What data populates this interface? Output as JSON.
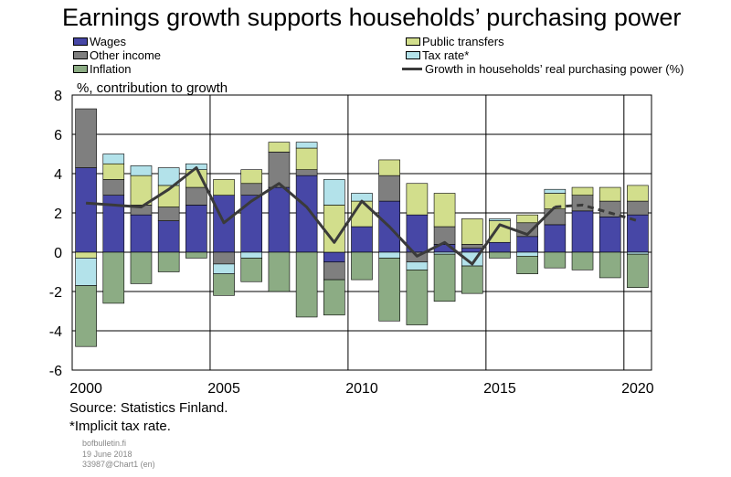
{
  "header": {
    "title": "Earnings growth supports households’ purchasing power",
    "ylabel": "%, contribution to growth"
  },
  "legend": {
    "wages": "Wages",
    "other_income": "Other income",
    "inflation": "Inflation",
    "public_transfers": "Public transfers",
    "tax_rate": "Tax rate*",
    "growth_line": "Growth in households’ real purchasing power (%)"
  },
  "footer": {
    "source": "Source: Statistics Finland.",
    "note": "*Implicit tax rate.",
    "site": "bofbulletin.fi",
    "date": "19 June 2018",
    "chart_id": "33987@Chart1 (en)"
  },
  "colors": {
    "wages": "#4747a6",
    "other_income": "#7f7f7f",
    "public_transfers": "#d2de8c",
    "tax_rate": "#b3e2ea",
    "inflation": "#8cac84",
    "line": "#3a3a3a"
  },
  "chart_data": {
    "type": "bar",
    "stacked": true,
    "categories": [
      "2000",
      "2001",
      "2002",
      "2003",
      "2004",
      "2005",
      "2006",
      "2007",
      "2008",
      "2009",
      "2010",
      "2011",
      "2012",
      "2013",
      "2014",
      "2015",
      "2016",
      "2017",
      "2018",
      "2019",
      "2020"
    ],
    "x_tick_labels": [
      "2000",
      "2005",
      "2010",
      "2015",
      "2020"
    ],
    "y_ticks": [
      -6,
      -4,
      -2,
      0,
      2,
      4,
      6,
      8
    ],
    "ylim": [
      -6,
      8
    ],
    "ylabel": "%, contribution to growth",
    "grid": true,
    "series": [
      {
        "name": "Wages",
        "key": "wages",
        "values": [
          4.3,
          2.9,
          1.9,
          1.6,
          2.4,
          2.9,
          2.9,
          3.3,
          3.9,
          -0.5,
          1.3,
          2.6,
          1.9,
          0.4,
          0.2,
          0.5,
          0.8,
          1.4,
          2.1,
          1.8,
          1.9
        ]
      },
      {
        "name": "Other income",
        "key": "other_income",
        "values": [
          3.0,
          0.8,
          0.5,
          0.7,
          0.9,
          -0.6,
          0.6,
          1.8,
          0.3,
          -0.9,
          0.0,
          1.3,
          -0.5,
          0.9,
          0.2,
          0.0,
          0.7,
          0.8,
          0.8,
          0.8,
          0.7
        ]
      },
      {
        "name": "Public transfers",
        "key": "public_transfers",
        "values": [
          -0.3,
          0.8,
          1.5,
          1.1,
          0.9,
          0.8,
          0.7,
          0.5,
          1.1,
          2.4,
          1.3,
          0.8,
          1.6,
          1.7,
          1.3,
          1.1,
          0.4,
          0.8,
          0.4,
          0.7,
          0.8
        ]
      },
      {
        "name": "Tax rate*",
        "key": "tax_rate",
        "values": [
          -1.4,
          0.5,
          0.5,
          0.9,
          0.3,
          -0.5,
          -0.3,
          0.0,
          0.3,
          1.3,
          0.4,
          -0.3,
          -0.4,
          -0.1,
          -0.7,
          0.1,
          -0.2,
          0.2,
          0.0,
          0.0,
          -0.1
        ]
      },
      {
        "name": "Inflation",
        "key": "inflation",
        "values": [
          -3.1,
          -2.6,
          -1.6,
          -1.0,
          -0.3,
          -1.1,
          -1.2,
          -2.0,
          -3.3,
          -1.8,
          -1.4,
          -3.2,
          -2.8,
          -2.4,
          -1.4,
          -0.3,
          -0.9,
          -0.8,
          -0.9,
          -1.3,
          -1.7
        ]
      }
    ],
    "line": {
      "name": "Growth in households’ real purchasing power (%)",
      "values": [
        2.5,
        2.4,
        2.3,
        3.2,
        4.3,
        1.5,
        2.6,
        3.5,
        2.3,
        0.5,
        2.6,
        1.3,
        -0.2,
        0.5,
        -0.6,
        1.4,
        0.9,
        2.3,
        2.4,
        2.0,
        1.6
      ],
      "dashed_from": "2017"
    }
  }
}
